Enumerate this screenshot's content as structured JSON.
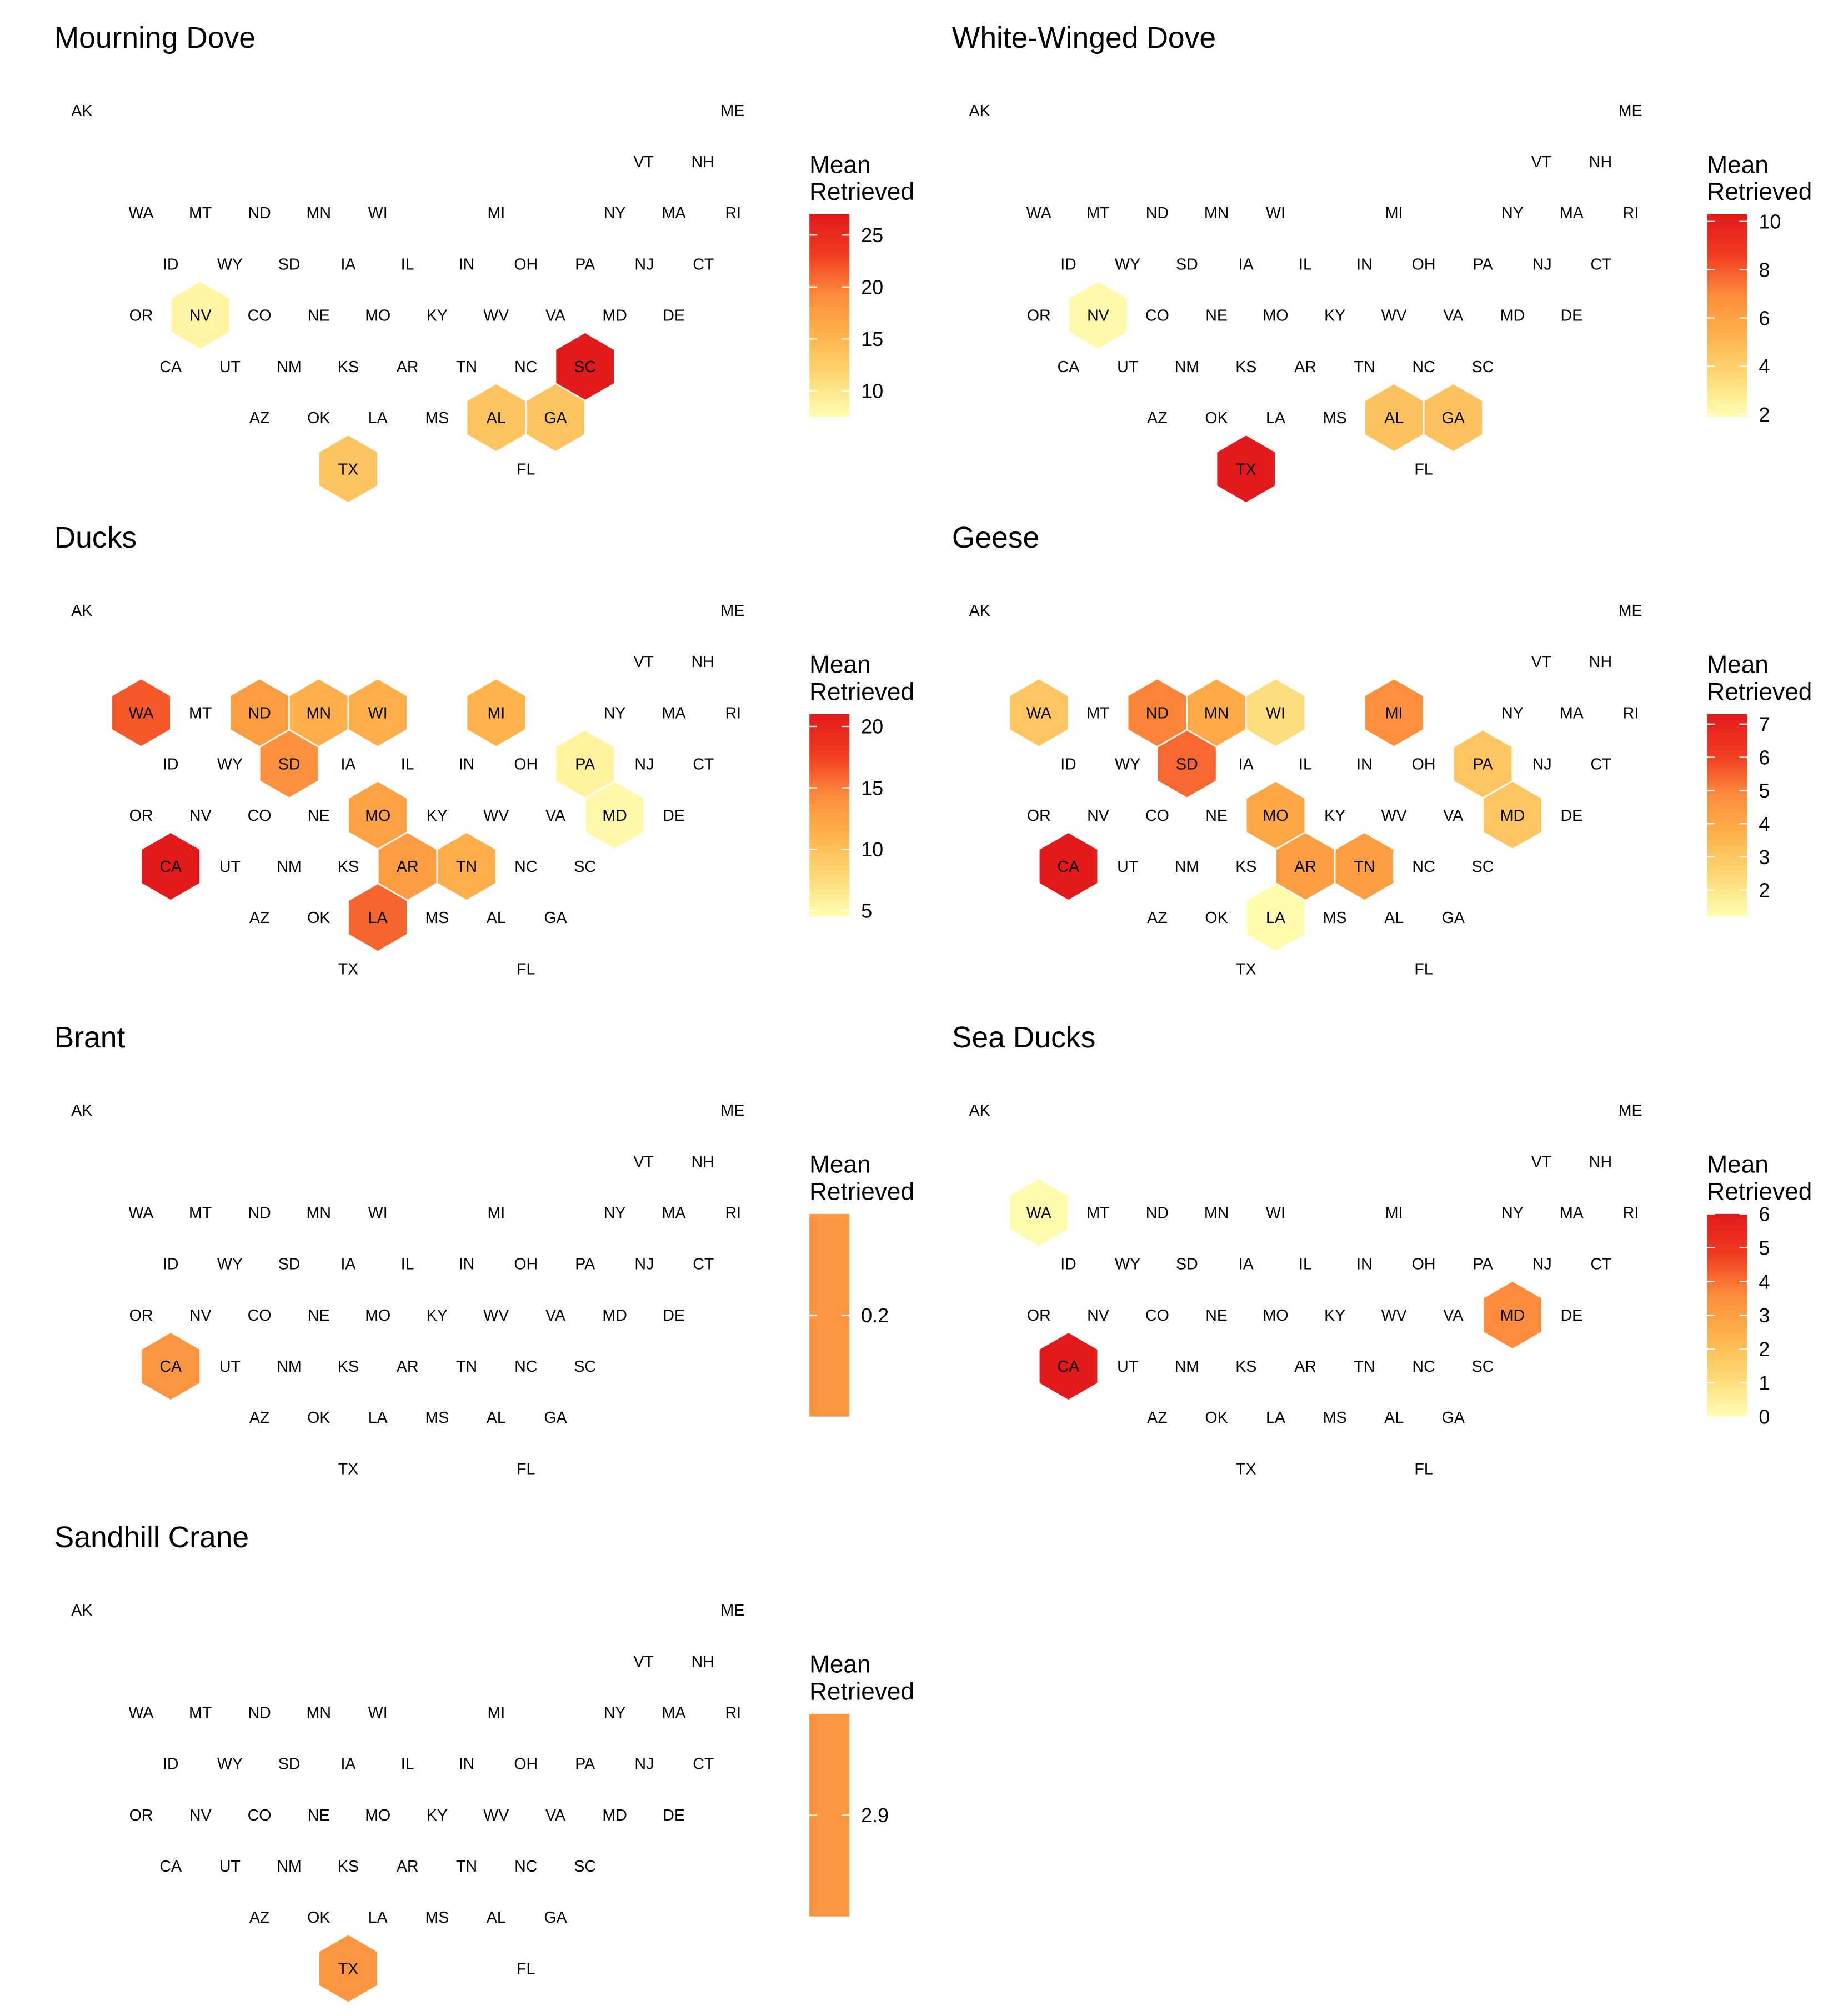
{
  "figure": {
    "legend_title": [
      "Mean",
      "Retrieved"
    ]
  },
  "color_scale": {
    "low": "#FFFFB2",
    "mid1": "#FED976",
    "mid2": "#FEB24C",
    "mid3": "#FD8D3C",
    "mid4": "#F03B20",
    "high": "#E31A1C"
  },
  "chart_data": [
    {
      "type": "hexbin map",
      "title": "Mourning Dove",
      "legend": {
        "title": "Mean Retrieved",
        "min": 7.5,
        "max": 27,
        "ticks": [
          10,
          15,
          20,
          25
        ]
      },
      "values": {
        "NV": 8.5,
        "SC": 27,
        "AL": 13.5,
        "GA": 13.5,
        "TX": 13.5
      }
    },
    {
      "type": "hexbin map",
      "title": "White-Winged Dove",
      "legend": {
        "title": "Mean Retrieved",
        "min": 1.9,
        "max": 10.3,
        "ticks": [
          2,
          4,
          6,
          8,
          10
        ]
      },
      "values": {
        "NV": 2.1,
        "TX": 10.3,
        "AL": 4.6,
        "GA": 4.6
      }
    },
    {
      "type": "hexbin map",
      "title": "Ducks",
      "legend": {
        "title": "Mean Retrieved",
        "min": 4.5,
        "max": 21,
        "ticks": [
          5,
          10,
          15,
          20
        ]
      },
      "values": {
        "WA": 16.5,
        "ND": 13,
        "MN": 11.5,
        "WI": 11.5,
        "MI": 11,
        "SD": 14,
        "PA": 5.5,
        "MO": 12.5,
        "MD": 5,
        "CA": 21,
        "AR": 13,
        "TN": 11.5,
        "LA": 16
      }
    },
    {
      "type": "hexbin map",
      "title": "Geese",
      "legend": {
        "title": "Mean Retrieved",
        "min": 1.2,
        "max": 7.3,
        "ticks": [
          2,
          3,
          4,
          5,
          6,
          7
        ]
      },
      "values": {
        "WA": 3.0,
        "ND": 5.0,
        "MN": 3.9,
        "WI": 2.3,
        "MI": 4.8,
        "SD": 5.4,
        "PA": 3.0,
        "MO": 4.0,
        "MD": 3.0,
        "CA": 7.3,
        "AR": 4.3,
        "TN": 4.3,
        "LA": 1.3
      }
    },
    {
      "type": "hexbin map",
      "title": "Brant",
      "legend": {
        "title": "Mean Retrieved",
        "min": 0.2,
        "max": 0.2,
        "ticks": [
          0.2
        ],
        "tick_labels": [
          "0.2"
        ],
        "single": true
      },
      "values": {
        "CA": 0.2
      }
    },
    {
      "type": "hexbin map",
      "title": "Sea Ducks",
      "legend": {
        "title": "Mean Retrieved",
        "min": 0,
        "max": 6,
        "ticks": [
          0,
          1,
          2,
          3,
          4,
          5,
          6
        ]
      },
      "values": {
        "WA": 0.1,
        "MD": 3.6,
        "CA": 6
      }
    },
    {
      "type": "hexbin map",
      "title": "Sandhill Crane",
      "legend": {
        "title": "Mean Retrieved",
        "min": 2.9,
        "max": 2.9,
        "ticks": [
          2.9
        ],
        "tick_labels": [
          "2.9"
        ],
        "single": true
      },
      "values": {
        "TX": 2.9
      }
    }
  ],
  "states": [
    {
      "id": "AK"
    },
    {
      "id": "ME"
    },
    {
      "id": "VT"
    },
    {
      "id": "NH"
    },
    {
      "id": "WA"
    },
    {
      "id": "MT"
    },
    {
      "id": "ND"
    },
    {
      "id": "MN"
    },
    {
      "id": "WI"
    },
    {
      "id": "MI"
    },
    {
      "id": "NY"
    },
    {
      "id": "MA"
    },
    {
      "id": "RI"
    },
    {
      "id": "ID"
    },
    {
      "id": "WY"
    },
    {
      "id": "SD"
    },
    {
      "id": "IA"
    },
    {
      "id": "IL"
    },
    {
      "id": "IN"
    },
    {
      "id": "OH"
    },
    {
      "id": "PA"
    },
    {
      "id": "NJ"
    },
    {
      "id": "CT"
    },
    {
      "id": "OR"
    },
    {
      "id": "NV"
    },
    {
      "id": "CO"
    },
    {
      "id": "NE"
    },
    {
      "id": "MO"
    },
    {
      "id": "KY"
    },
    {
      "id": "WV"
    },
    {
      "id": "VA"
    },
    {
      "id": "MD"
    },
    {
      "id": "DE"
    },
    {
      "id": "CA"
    },
    {
      "id": "UT"
    },
    {
      "id": "NM"
    },
    {
      "id": "KS"
    },
    {
      "id": "AR"
    },
    {
      "id": "TN"
    },
    {
      "id": "NC"
    },
    {
      "id": "SC"
    },
    {
      "id": "AZ"
    },
    {
      "id": "OK"
    },
    {
      "id": "LA"
    },
    {
      "id": "MS"
    },
    {
      "id": "AL"
    },
    {
      "id": "GA"
    },
    {
      "id": "TX"
    },
    {
      "id": "FL"
    }
  ]
}
